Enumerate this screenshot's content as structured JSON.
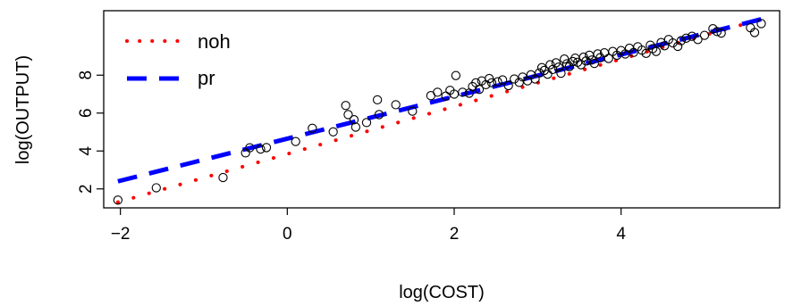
{
  "chart_data": {
    "type": "scatter",
    "title": "",
    "xlabel": "log(COST)",
    "ylabel": "log(OUTPUT)",
    "xlim": [
      -2.2,
      5.9
    ],
    "ylim": [
      1.0,
      11.4
    ],
    "xticks": [
      -2,
      0,
      2,
      4
    ],
    "yticks": [
      2,
      4,
      6,
      8
    ],
    "grid": false,
    "legend_position": "top-left",
    "points": [
      [
        -2.03,
        1.41
      ],
      [
        -1.57,
        2.06
      ],
      [
        -0.77,
        2.6
      ],
      [
        -0.5,
        3.9
      ],
      [
        -0.45,
        4.17
      ],
      [
        -0.32,
        4.1
      ],
      [
        -0.25,
        4.18
      ],
      [
        0.1,
        4.5
      ],
      [
        0.3,
        5.2
      ],
      [
        0.55,
        5.01
      ],
      [
        0.7,
        6.4
      ],
      [
        0.73,
        5.92
      ],
      [
        0.8,
        5.65
      ],
      [
        0.82,
        5.26
      ],
      [
        0.95,
        5.5
      ],
      [
        1.08,
        6.7
      ],
      [
        1.1,
        5.92
      ],
      [
        1.3,
        6.44
      ],
      [
        1.5,
        6.1
      ],
      [
        1.72,
        6.92
      ],
      [
        1.8,
        7.1
      ],
      [
        1.9,
        6.9
      ],
      [
        1.95,
        7.2
      ],
      [
        2.0,
        7.0
      ],
      [
        2.02,
        7.98
      ],
      [
        2.1,
        7.1
      ],
      [
        2.18,
        7.05
      ],
      [
        2.22,
        7.4
      ],
      [
        2.26,
        7.6
      ],
      [
        2.3,
        7.25
      ],
      [
        2.33,
        7.7
      ],
      [
        2.38,
        7.5
      ],
      [
        2.42,
        7.82
      ],
      [
        2.45,
        7.6
      ],
      [
        2.52,
        7.65
      ],
      [
        2.58,
        7.75
      ],
      [
        2.65,
        7.45
      ],
      [
        2.72,
        7.8
      ],
      [
        2.78,
        7.62
      ],
      [
        2.82,
        7.9
      ],
      [
        2.88,
        7.7
      ],
      [
        2.92,
        8.02
      ],
      [
        2.97,
        7.8
      ],
      [
        3.02,
        8.12
      ],
      [
        3.05,
        8.4
      ],
      [
        3.08,
        8.25
      ],
      [
        3.12,
        8.05
      ],
      [
        3.15,
        8.55
      ],
      [
        3.18,
        8.3
      ],
      [
        3.22,
        8.65
      ],
      [
        3.25,
        8.42
      ],
      [
        3.28,
        8.1
      ],
      [
        3.32,
        8.85
      ],
      [
        3.35,
        8.6
      ],
      [
        3.38,
        8.45
      ],
      [
        3.42,
        8.72
      ],
      [
        3.45,
        8.9
      ],
      [
        3.48,
        8.68
      ],
      [
        3.52,
        8.55
      ],
      [
        3.55,
        8.95
      ],
      [
        3.58,
        8.75
      ],
      [
        3.62,
        9.05
      ],
      [
        3.65,
        8.8
      ],
      [
        3.68,
        8.62
      ],
      [
        3.72,
        9.12
      ],
      [
        3.75,
        8.92
      ],
      [
        3.8,
        9.18
      ],
      [
        3.85,
        8.88
      ],
      [
        3.9,
        9.25
      ],
      [
        3.95,
        9.05
      ],
      [
        4.0,
        9.3
      ],
      [
        4.05,
        9.12
      ],
      [
        4.1,
        9.42
      ],
      [
        4.15,
        9.2
      ],
      [
        4.2,
        9.5
      ],
      [
        4.25,
        9.32
      ],
      [
        4.3,
        9.15
      ],
      [
        4.35,
        9.58
      ],
      [
        4.38,
        9.4
      ],
      [
        4.42,
        9.25
      ],
      [
        4.48,
        9.72
      ],
      [
        4.52,
        9.55
      ],
      [
        4.57,
        9.88
      ],
      [
        4.62,
        9.7
      ],
      [
        4.68,
        9.52
      ],
      [
        4.72,
        9.82
      ],
      [
        4.78,
        9.95
      ],
      [
        4.85,
        10.05
      ],
      [
        4.92,
        9.88
      ],
      [
        5.0,
        10.1
      ],
      [
        5.1,
        10.45
      ],
      [
        5.15,
        10.3
      ],
      [
        5.2,
        10.22
      ],
      [
        5.55,
        10.5
      ],
      [
        5.6,
        10.25
      ],
      [
        5.68,
        10.72
      ]
    ],
    "series": [
      {
        "name": "noh",
        "style": "dotted",
        "color": "#ff0000",
        "x": [
          -2.03,
          5.68
        ],
        "y": [
          1.3,
          10.95
        ]
      },
      {
        "name": "pr",
        "style": "dashed",
        "color": "#0000ff",
        "x": [
          -2.03,
          5.68
        ],
        "y": [
          2.4,
          10.95
        ]
      }
    ]
  }
}
